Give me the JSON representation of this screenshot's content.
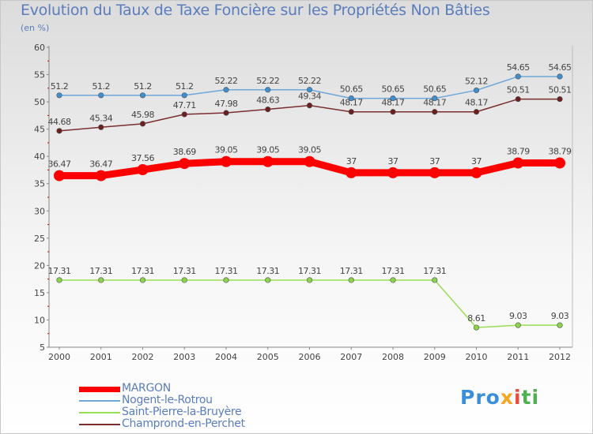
{
  "title": "Evolution du Taux de Taxe Foncière sur les Propriétés Non Bâties",
  "unit_label": "(en %)",
  "logo": {
    "p1": "Pro",
    "p2": "x",
    "p3": "i",
    "p4": "ti"
  },
  "chart_data": {
    "type": "line",
    "title": "Evolution du Taux de Taxe Foncière sur les Propriétés Non Bâties",
    "ylabel": "(en %)",
    "xlabel": "",
    "x": [
      "2000",
      "2001",
      "2002",
      "2003",
      "2004",
      "2005",
      "2006",
      "2007",
      "2008",
      "2009",
      "2010",
      "2011",
      "2012"
    ],
    "ylim": [
      5,
      60
    ],
    "yticks": [
      5,
      10,
      15,
      20,
      25,
      30,
      35,
      40,
      45,
      50,
      55,
      60
    ],
    "grid": false,
    "legend_position": "bottom-left",
    "series": [
      {
        "name": "MARGON",
        "color": "#ff0000",
        "emphasis": true,
        "values": [
          36.47,
          36.47,
          37.56,
          38.69,
          39.05,
          39.05,
          39.05,
          37,
          37,
          37,
          37,
          38.79,
          38.79
        ],
        "labels": [
          "36.47",
          "36.47",
          "37.56",
          "38.69",
          "39.05",
          "39.05",
          "39.05",
          "37",
          "37",
          "37",
          "37",
          "38.79",
          "38.79"
        ]
      },
      {
        "name": "Nogent-le-Rotrou",
        "color": "#6ea7d9",
        "point_color": "#3d8fd0",
        "values": [
          51.2,
          51.2,
          51.2,
          51.2,
          52.22,
          52.22,
          52.22,
          50.65,
          50.65,
          50.65,
          52.12,
          54.65,
          54.65
        ],
        "labels": [
          "51.2",
          "51.2",
          "51.2",
          "51.2",
          "52.22",
          "52.22",
          "52.22",
          "50.65",
          "50.65",
          "50.65",
          "52.12",
          "54.65",
          "54.65"
        ]
      },
      {
        "name": "Saint-Pierre-la-Bruyère",
        "color": "#99dd55",
        "point_color": "#8ad34a",
        "values": [
          17.31,
          17.31,
          17.31,
          17.31,
          17.31,
          17.31,
          17.31,
          17.31,
          17.31,
          17.31,
          8.61,
          9.03,
          9.03
        ],
        "labels": [
          "17.31",
          "17.31",
          "17.31",
          "17.31",
          "17.31",
          "17.31",
          "17.31",
          "17.31",
          "17.31",
          "17.31",
          "8.61",
          "9.03",
          "9.03"
        ]
      },
      {
        "name": "Champrond-en-Perchet",
        "color": "#7a2e2e",
        "point_color": "#6b1f1f",
        "values": [
          44.68,
          45.34,
          45.98,
          47.71,
          47.98,
          48.63,
          49.34,
          48.17,
          48.17,
          48.17,
          48.17,
          50.51,
          50.51
        ],
        "labels": [
          "44.68",
          "45.34",
          "45.98",
          "47.71",
          "47.98",
          "48.63",
          "49.34",
          "48.17",
          "48.17",
          "48.17",
          "48.17",
          "50.51",
          "50.51"
        ]
      }
    ]
  }
}
